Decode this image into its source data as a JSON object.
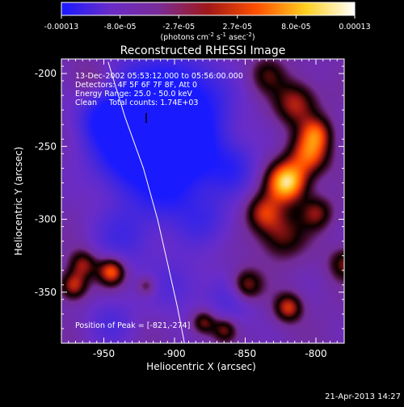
{
  "colorbar": {
    "labels": [
      "-0.00013",
      "-8.0e-05",
      "-2.7e-05",
      "2.7e-05",
      "8.0e-05",
      "0.00013"
    ],
    "units_prefix": "(photons cm",
    "units_exp1": "-2",
    "units_mid": " s",
    "units_exp2": "-1",
    "units_mid2": " asec",
    "units_exp3": "-2",
    "units_suffix": ")",
    "colors": [
      "#1a1aff",
      "#6a2cc8",
      "#7a2c96",
      "#a01818",
      "#ff5000",
      "#ffd020",
      "#ffffff"
    ]
  },
  "chart_data": {
    "type": "heatmap",
    "title": "Reconstructed RHESSI Image",
    "xlabel": "Heliocentric X (arcsec)",
    "ylabel": "Heliocentric Y (arcsec)",
    "xlim": [
      -980,
      -780
    ],
    "ylim": [
      -385,
      -190
    ],
    "xticks": [
      -950,
      -900,
      -850,
      -800
    ],
    "xtick_labels": [
      "-950",
      "-900",
      "-850",
      "-800"
    ],
    "yticks": [
      -200,
      -250,
      -300,
      -350
    ],
    "ytick_labels": [
      "-200",
      "-250",
      "-300",
      "-350"
    ],
    "clim": [
      -0.00013,
      0.00013
    ],
    "peak": [
      -821,
      -274
    ],
    "blobs": [
      {
        "x": -920,
        "y": -230,
        "s": 25,
        "a": -1.0
      },
      {
        "x": -895,
        "y": -225,
        "s": 22,
        "a": -0.9
      },
      {
        "x": -930,
        "y": -255,
        "s": 18,
        "a": -0.8
      },
      {
        "x": -890,
        "y": -255,
        "s": 15,
        "a": -0.7
      },
      {
        "x": -905,
        "y": -280,
        "s": 14,
        "a": -0.6
      },
      {
        "x": -860,
        "y": -265,
        "s": 12,
        "a": -0.55
      },
      {
        "x": -950,
        "y": -230,
        "s": 12,
        "a": -0.55
      },
      {
        "x": -935,
        "y": -310,
        "s": 16,
        "a": -0.45
      },
      {
        "x": -880,
        "y": -300,
        "s": 14,
        "a": -0.45
      },
      {
        "x": -900,
        "y": -345,
        "s": 14,
        "a": -0.35
      },
      {
        "x": -860,
        "y": -355,
        "s": 12,
        "a": -0.35
      },
      {
        "x": -945,
        "y": -370,
        "s": 12,
        "a": -0.35
      },
      {
        "x": -821,
        "y": -274,
        "s": 10,
        "a": 1.0
      },
      {
        "x": -805,
        "y": -255,
        "s": 10,
        "a": 0.65
      },
      {
        "x": -815,
        "y": -220,
        "s": 11,
        "a": 0.55
      },
      {
        "x": -800,
        "y": -240,
        "s": 8,
        "a": 0.5
      },
      {
        "x": -838,
        "y": -295,
        "s": 9,
        "a": 0.5
      },
      {
        "x": -825,
        "y": -310,
        "s": 12,
        "a": 0.45
      },
      {
        "x": -800,
        "y": -295,
        "s": 8,
        "a": 0.45
      },
      {
        "x": -850,
        "y": -345,
        "s": 8,
        "a": 0.6
      },
      {
        "x": -945,
        "y": -335,
        "s": 7,
        "a": 0.75
      },
      {
        "x": -972,
        "y": -345,
        "s": 7,
        "a": 0.6
      },
      {
        "x": -920,
        "y": -345,
        "s": 5,
        "a": 0.4
      },
      {
        "x": -965,
        "y": -330,
        "s": 7,
        "a": 0.5
      },
      {
        "x": -880,
        "y": -370,
        "s": 6,
        "a": 0.5
      },
      {
        "x": -820,
        "y": -360,
        "s": 7,
        "a": 0.6
      },
      {
        "x": -865,
        "y": -375,
        "s": 6,
        "a": 0.45
      },
      {
        "x": -780,
        "y": -330,
        "s": 8,
        "a": 0.45
      },
      {
        "x": -960,
        "y": -205,
        "s": 10,
        "a": 0.3
      },
      {
        "x": -835,
        "y": -200,
        "s": 9,
        "a": 0.35
      }
    ],
    "limb_curve": [
      [
        -947,
        -192
      ],
      [
        -935,
        -230
      ],
      [
        -922,
        -265
      ],
      [
        -912,
        -300
      ],
      [
        -905,
        -330
      ],
      [
        -898,
        -360
      ],
      [
        -893,
        -385
      ]
    ]
  },
  "info": {
    "line1": "13-Dec-2002 05:53:12.000 to 05:56:00.000",
    "line2": "Detectors: 4F 5F 6F 7F 8F, Att 0",
    "line3": "Energy Range: 25.0 - 50.0 keV",
    "line4": "Clean     Total counts: 1.74E+03",
    "peak_label": "Position of Peak = [-821,-274]"
  },
  "footer": {
    "timestamp": "21-Apr-2013 14:27"
  }
}
